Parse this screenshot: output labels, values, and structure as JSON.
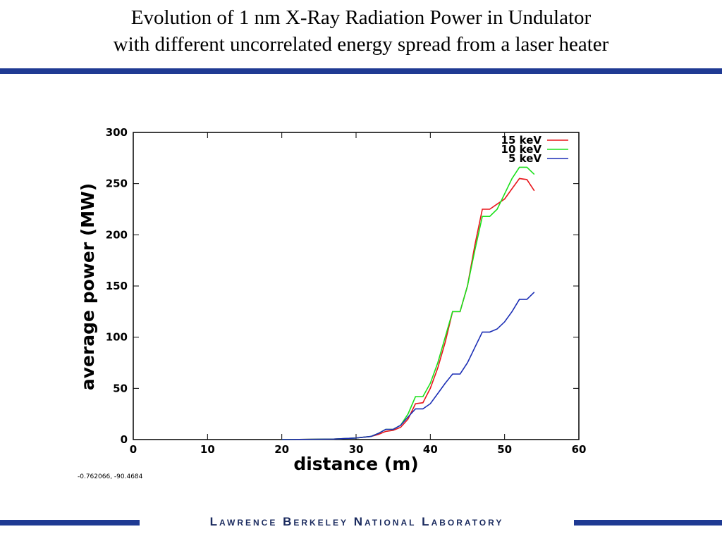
{
  "slide": {
    "title_line1": "Evolution of 1 nm X-Ray Radiation Power in Undulator",
    "title_line2": "with different uncorrelated energy spread from a laser heater",
    "coordinates_readout": "-0.762066, -90.4684",
    "footer": "Lawrence Berkeley National Laboratory",
    "colors": {
      "rule": "#1f3a93",
      "footer_text": "#1a2a5e"
    }
  },
  "chart_data": {
    "type": "line",
    "title": "",
    "xlabel": "distance (m)",
    "ylabel": "average power (MW)",
    "xlim": [
      0,
      60
    ],
    "ylim": [
      0,
      300
    ],
    "xticks": [
      0,
      10,
      20,
      30,
      40,
      50,
      60
    ],
    "yticks": [
      0,
      50,
      100,
      150,
      200,
      250,
      300
    ],
    "grid": false,
    "legend_position": "top-right",
    "series": [
      {
        "name": "15 keV",
        "color": "#e8161b",
        "x": [
          20,
          27,
          30,
          32,
          33,
          34,
          35,
          36,
          37,
          38,
          39,
          40,
          41,
          42,
          43,
          44,
          45,
          46,
          47,
          48,
          49,
          50,
          51,
          52,
          53,
          54
        ],
        "y": [
          0,
          0.5,
          1.5,
          3,
          5,
          8,
          9,
          12,
          20,
          35,
          36,
          50,
          70,
          95,
          125,
          125,
          150,
          190,
          225,
          225,
          230,
          235,
          245,
          255,
          254,
          243
        ]
      },
      {
        "name": "10 keV",
        "color": "#1be01b",
        "x": [
          20,
          27,
          30,
          32,
          33,
          34,
          35,
          36,
          37,
          38,
          39,
          40,
          41,
          42,
          43,
          44,
          45,
          46,
          47,
          48,
          49,
          50,
          51,
          52,
          53,
          54
        ],
        "y": [
          0,
          0.5,
          1.5,
          3,
          6,
          10,
          10,
          14,
          25,
          42,
          42,
          55,
          75,
          100,
          125,
          125,
          150,
          185,
          218,
          218,
          225,
          240,
          255,
          266,
          266,
          259
        ]
      },
      {
        "name": "5 keV",
        "color": "#1c2fb5",
        "x": [
          20,
          27,
          30,
          32,
          33,
          34,
          35,
          36,
          37,
          38,
          39,
          40,
          41,
          42,
          43,
          44,
          45,
          46,
          47,
          48,
          49,
          50,
          51,
          52,
          53,
          54
        ],
        "y": [
          0,
          0.5,
          1.5,
          3,
          6,
          10,
          10,
          14,
          22,
          30,
          30,
          35,
          45,
          55,
          64,
          64,
          75,
          90,
          105,
          105,
          108,
          115,
          125,
          137,
          137,
          144
        ]
      }
    ]
  }
}
